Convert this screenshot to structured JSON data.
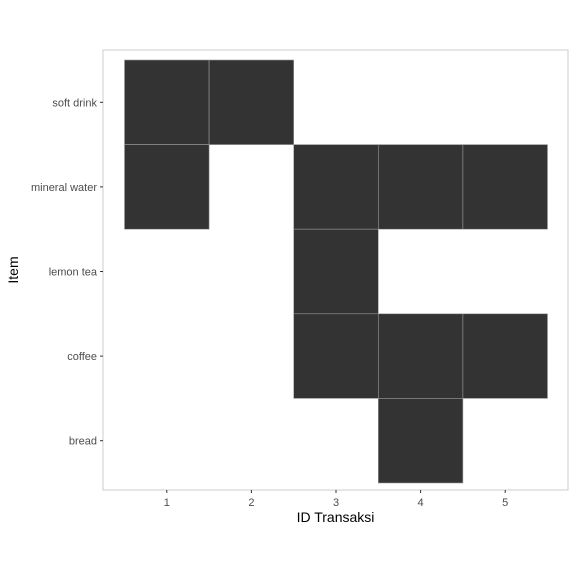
{
  "chart_data": {
    "type": "heatmap",
    "title": "",
    "xlabel": "ID Transaksi",
    "ylabel": "Item",
    "x_categories": [
      "1",
      "2",
      "3",
      "4",
      "5"
    ],
    "y_categories": [
      "soft drink",
      "mineral water",
      "lemon tea",
      "coffee",
      "bread"
    ],
    "cells": [
      {
        "x": "1",
        "y": "soft drink"
      },
      {
        "x": "2",
        "y": "soft drink"
      },
      {
        "x": "1",
        "y": "mineral water"
      },
      {
        "x": "3",
        "y": "mineral water"
      },
      {
        "x": "4",
        "y": "mineral water"
      },
      {
        "x": "5",
        "y": "mineral water"
      },
      {
        "x": "3",
        "y": "lemon tea"
      },
      {
        "x": "3",
        "y": "coffee"
      },
      {
        "x": "4",
        "y": "coffee"
      },
      {
        "x": "5",
        "y": "coffee"
      },
      {
        "x": "4",
        "y": "bread"
      }
    ],
    "grid": false,
    "legend": "none",
    "colors": {
      "cell_fill": "#333333",
      "cell_border": "#9a9a9a",
      "panel_border": "#cccccc",
      "tick_label": "#4d4d4d",
      "axis_title": "#000000"
    }
  }
}
